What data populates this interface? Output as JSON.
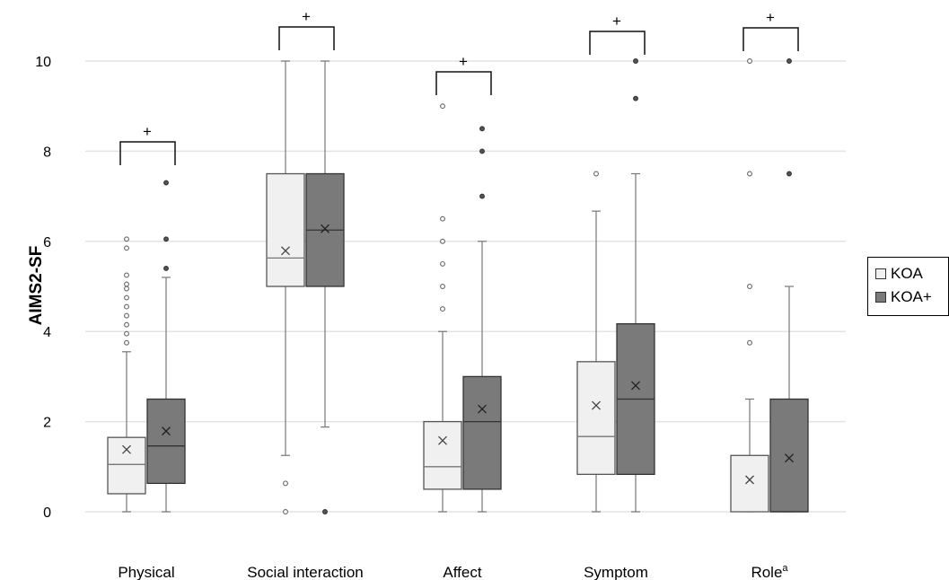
{
  "chart_data": {
    "type": "box",
    "ylabel": "AIMS2-SF",
    "ylim": [
      -1,
      11
    ],
    "yticks": [
      0,
      2,
      4,
      6,
      8,
      10
    ],
    "grid": true,
    "legend_position": "right",
    "categories": [
      "Physical",
      "Social interaction",
      "Affect",
      "Symptom",
      "Role"
    ],
    "category_superscripts": [
      "",
      "",
      "",
      "",
      "a"
    ],
    "significance_marks": [
      "+",
      "+",
      "+",
      "+",
      "+"
    ],
    "series": [
      {
        "name": "KOA",
        "color": "#f0f0f0",
        "boxes": [
          {
            "min": 0,
            "q1": 0.4,
            "median": 1.05,
            "q3": 1.65,
            "max": 3.55,
            "mean": 1.38,
            "outliers": [
              3.75,
              3.95,
              4.15,
              4.35,
              4.55,
              4.75,
              4.95,
              5.05,
              5.25,
              5.85,
              6.05
            ]
          },
          {
            "min": 1.25,
            "q1": 5.0,
            "median": 5.63,
            "q3": 7.5,
            "max": 10,
            "mean": 5.79,
            "outliers": [
              0,
              0.63
            ]
          },
          {
            "min": 0,
            "q1": 0.5,
            "median": 1.0,
            "q3": 2.0,
            "max": 4.0,
            "mean": 1.58,
            "outliers": [
              4.5,
              5.0,
              5.5,
              6.0,
              6.5,
              9.0
            ]
          },
          {
            "min": 0,
            "q1": 0.83,
            "median": 1.67,
            "q3": 3.33,
            "max": 6.67,
            "mean": 2.36,
            "outliers": [
              7.5
            ]
          },
          {
            "min": 0,
            "q1": 0,
            "median": 0,
            "q3": 1.25,
            "max": 2.5,
            "mean": 0.71,
            "outliers": [
              3.75,
              5.0,
              7.5,
              10
            ]
          }
        ]
      },
      {
        "name": "KOA+",
        "color": "#7a7a7a",
        "boxes": [
          {
            "min": 0,
            "q1": 0.63,
            "median": 1.46,
            "q3": 2.5,
            "max": 5.2,
            "mean": 1.79,
            "outliers": [
              5.4,
              6.05,
              7.3
            ]
          },
          {
            "min": 1.88,
            "q1": 5.0,
            "median": 6.25,
            "q3": 7.5,
            "max": 10,
            "mean": 6.28,
            "outliers": [
              0
            ]
          },
          {
            "min": 0,
            "q1": 0.5,
            "median": 2.0,
            "q3": 3.0,
            "max": 6.0,
            "mean": 2.28,
            "outliers": [
              7.0,
              8.0,
              8.5
            ]
          },
          {
            "min": 0,
            "q1": 0.83,
            "median": 2.5,
            "q3": 4.17,
            "max": 7.5,
            "mean": 2.8,
            "outliers": [
              9.17,
              10
            ]
          },
          {
            "min": 0,
            "q1": 0,
            "median": 0,
            "q3": 2.5,
            "max": 5.0,
            "mean": 1.19,
            "outliers": [
              7.5,
              10
            ]
          }
        ]
      }
    ]
  }
}
